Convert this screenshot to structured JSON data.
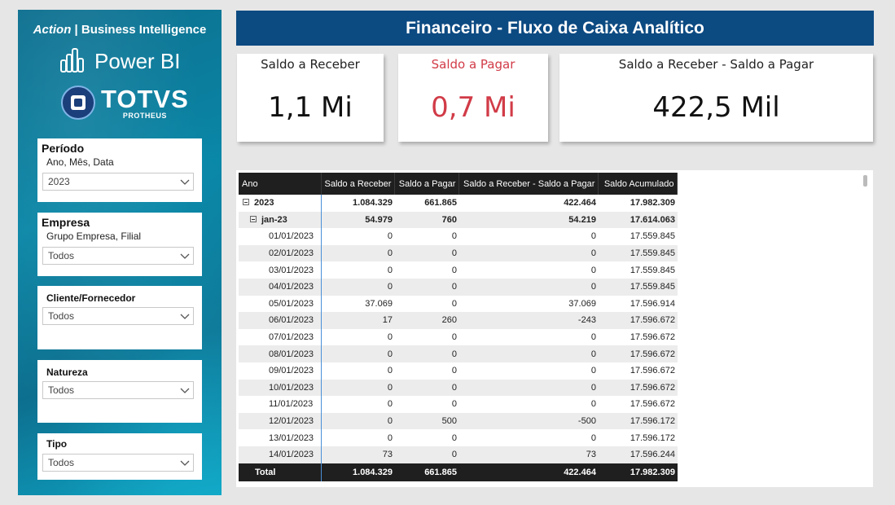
{
  "sidebar": {
    "brand_italic": "Action",
    "brand_rest": " | Business Intelligence",
    "powerbi_label": "Power BI",
    "totvs_name": "TOTVS",
    "totvs_sub": "PROTHEUS",
    "slicers": [
      {
        "title": "Período",
        "subtitle": "Ano, Mês, Data",
        "value": "2023"
      },
      {
        "title": "Empresa",
        "subtitle": "Grupo Empresa, Filial",
        "value": "Todos"
      },
      {
        "title": "Cliente/Fornecedor",
        "value": "Todos"
      },
      {
        "title": "Natureza",
        "value": "Todos"
      },
      {
        "title": "Tipo",
        "value": "Todos"
      }
    ]
  },
  "header": {
    "title": "Financeiro - Fluxo de Caixa Analítico"
  },
  "cards": [
    {
      "label": "Saldo a Receber",
      "value": "1,1 Mi"
    },
    {
      "label": "Saldo a Pagar",
      "value": "0,7 Mi",
      "color": "#d13b47"
    },
    {
      "label": "Saldo a Receber - Saldo a Pagar",
      "value": "422,5 Mil"
    }
  ],
  "table": {
    "columns": [
      "Ano",
      "Saldo a Receber",
      "Saldo a Pagar",
      "Saldo a Receber - Saldo a Pagar",
      "Saldo Acumulado"
    ],
    "rows": [
      {
        "level": 0,
        "label": "2023",
        "values": [
          "1.084.329",
          "661.865",
          "422.464",
          "17.982.309"
        ]
      },
      {
        "level": 1,
        "label": "jan-23",
        "values": [
          "54.979",
          "760",
          "54.219",
          "17.614.063"
        ]
      },
      {
        "level": 2,
        "label": "01/01/2023",
        "values": [
          "0",
          "0",
          "0",
          "17.559.845"
        ]
      },
      {
        "level": 2,
        "label": "02/01/2023",
        "values": [
          "0",
          "0",
          "0",
          "17.559.845"
        ]
      },
      {
        "level": 2,
        "label": "03/01/2023",
        "values": [
          "0",
          "0",
          "0",
          "17.559.845"
        ]
      },
      {
        "level": 2,
        "label": "04/01/2023",
        "values": [
          "0",
          "0",
          "0",
          "17.559.845"
        ]
      },
      {
        "level": 2,
        "label": "05/01/2023",
        "values": [
          "37.069",
          "0",
          "37.069",
          "17.596.914"
        ]
      },
      {
        "level": 2,
        "label": "06/01/2023",
        "values": [
          "17",
          "260",
          "-243",
          "17.596.672"
        ]
      },
      {
        "level": 2,
        "label": "07/01/2023",
        "values": [
          "0",
          "0",
          "0",
          "17.596.672"
        ]
      },
      {
        "level": 2,
        "label": "08/01/2023",
        "values": [
          "0",
          "0",
          "0",
          "17.596.672"
        ]
      },
      {
        "level": 2,
        "label": "09/01/2023",
        "values": [
          "0",
          "0",
          "0",
          "17.596.672"
        ]
      },
      {
        "level": 2,
        "label": "10/01/2023",
        "values": [
          "0",
          "0",
          "0",
          "17.596.672"
        ]
      },
      {
        "level": 2,
        "label": "11/01/2023",
        "values": [
          "0",
          "0",
          "0",
          "17.596.672"
        ]
      },
      {
        "level": 2,
        "label": "12/01/2023",
        "values": [
          "0",
          "500",
          "-500",
          "17.596.172"
        ]
      },
      {
        "level": 2,
        "label": "13/01/2023",
        "values": [
          "0",
          "0",
          "0",
          "17.596.172"
        ]
      },
      {
        "level": 2,
        "label": "14/01/2023",
        "values": [
          "73",
          "0",
          "73",
          "17.596.244"
        ]
      }
    ],
    "total": {
      "label": "Total",
      "values": [
        "1.084.329",
        "661.865",
        "422.464",
        "17.982.309"
      ]
    }
  }
}
